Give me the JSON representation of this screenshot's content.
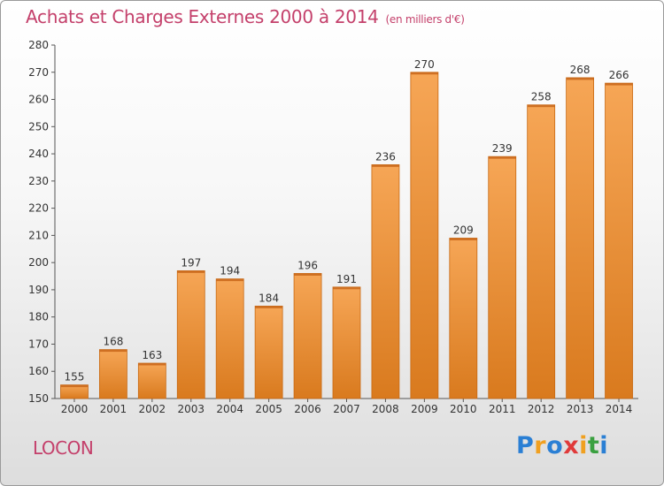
{
  "title": "Achats et Charges Externes 2000 à 2014",
  "subtitle": "(en milliers d'€)",
  "town": "LOCON",
  "logo": {
    "letters": [
      "P",
      "r",
      "o",
      "x",
      "i",
      "t",
      "i"
    ],
    "colors": [
      "#2a7fd4",
      "#f0a020",
      "#2a7fd4",
      "#e03a3a",
      "#f0a020",
      "#3aa040",
      "#2a7fd4"
    ]
  },
  "colors": {
    "bar_top": "#f6a656",
    "bar_bottom": "#d97a1e",
    "bar_edge": "#c86a14",
    "text": "#c4406b",
    "axis": "#555555"
  },
  "chart_data": {
    "type": "bar",
    "title": "Achats et Charges Externes 2000 à 2014",
    "subtitle": "(en milliers d'€)",
    "categories": [
      "2000",
      "2001",
      "2002",
      "2003",
      "2004",
      "2005",
      "2006",
      "2007",
      "2008",
      "2009",
      "2010",
      "2011",
      "2012",
      "2013",
      "2014"
    ],
    "values": [
      155,
      168,
      163,
      197,
      194,
      184,
      196,
      191,
      236,
      270,
      209,
      239,
      258,
      268,
      266
    ],
    "ylim": [
      150,
      280
    ],
    "yticks": [
      150,
      160,
      170,
      180,
      190,
      200,
      210,
      220,
      230,
      240,
      250,
      260,
      270,
      280
    ],
    "grid": false,
    "legend": "none"
  }
}
